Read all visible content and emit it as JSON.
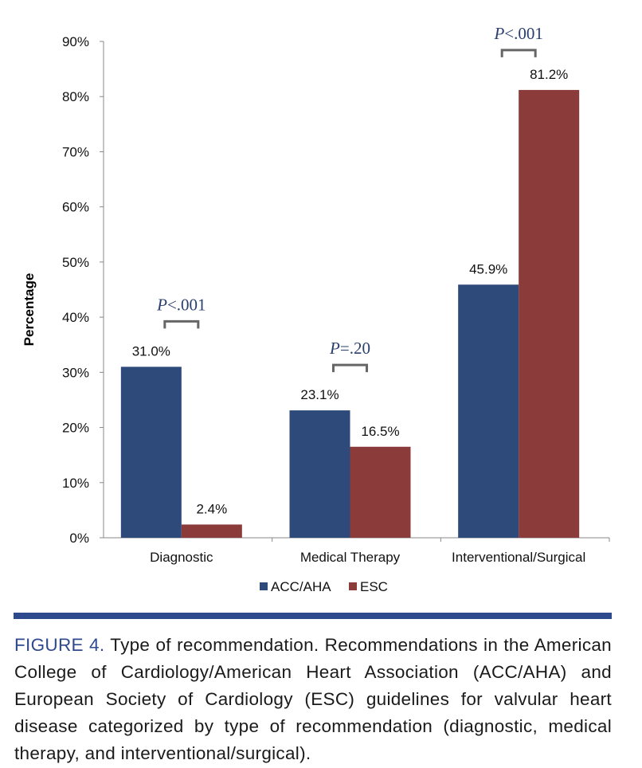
{
  "chart_data": {
    "type": "bar",
    "title": "",
    "xlabel": "",
    "ylabel": "Percentage",
    "ylim": [
      0,
      90
    ],
    "yticks": [
      "0%",
      "10%",
      "20%",
      "30%",
      "40%",
      "50%",
      "60%",
      "70%",
      "80%",
      "90%"
    ],
    "grid": false,
    "legend_position": "bottom",
    "categories": [
      "Diagnostic",
      "Medical Therapy",
      "Interventional/Surgical"
    ],
    "series": [
      {
        "name": "ACC/AHA",
        "color": "#2D4A7A",
        "values": [
          31.0,
          23.1,
          45.9
        ],
        "labels": [
          "31.0%",
          "23.1%",
          "45.9%"
        ]
      },
      {
        "name": "ESC",
        "color": "#8B3B3A",
        "values": [
          2.4,
          16.5,
          81.2
        ],
        "labels": [
          "2.4%",
          "16.5%",
          "81.2%"
        ]
      }
    ],
    "annotations": [
      {
        "category": "Diagnostic",
        "p_label": "P",
        "p_value": "<.001"
      },
      {
        "category": "Medical Therapy",
        "p_label": "P",
        "p_value": "=.20"
      },
      {
        "category": "Interventional/Surgical",
        "p_label": "P",
        "p_value": "<.001"
      }
    ]
  },
  "caption": {
    "figure_label": "FIGURE 4.",
    "text": "Type of recommendation. Recommendations in the American College of Cardiology/American Heart Association (ACC/AHA) and European Society of Cardiology (ESC) guidelines for valvular heart disease categorized by type of recommendation (diagnostic, medical therapy, and interventional/surgical).",
    "label_color": "#2E4A8E",
    "rule_color": "#2E4A8E"
  }
}
